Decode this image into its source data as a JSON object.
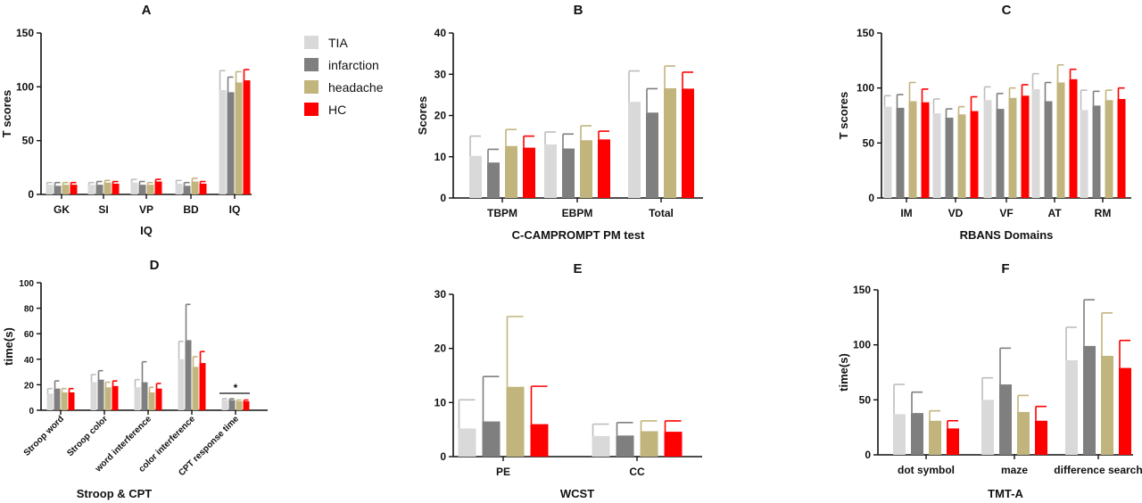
{
  "legend": [
    {
      "name": "TIA",
      "color": "#d9d9d9"
    },
    {
      "name": "infarction",
      "color": "#7f7f7f"
    },
    {
      "name": "headache",
      "color": "#c1b47c"
    },
    {
      "name": "HC",
      "color": "#ff0000"
    }
  ],
  "chart_data": [
    {
      "id": "A",
      "type": "bar",
      "title": "A",
      "xlabel": "IQ",
      "ylabel": "T scores",
      "ylim": [
        0,
        150
      ],
      "yticks": [
        0,
        50,
        100,
        150
      ],
      "categories": [
        "GK",
        "SI",
        "VP",
        "BD",
        "IQ"
      ],
      "series": [
        {
          "name": "TIA",
          "values": [
            9,
            9,
            11,
            10,
            97
          ],
          "errors": [
            2,
            2,
            3,
            3,
            18
          ]
        },
        {
          "name": "infarction",
          "values": [
            8,
            9,
            9,
            8,
            95
          ],
          "errors": [
            3,
            3,
            3,
            3,
            14
          ]
        },
        {
          "name": "headache",
          "values": [
            9,
            11,
            9,
            12,
            104
          ],
          "errors": [
            2,
            2,
            2,
            3,
            10
          ]
        },
        {
          "name": "HC",
          "values": [
            9,
            10,
            12,
            10,
            106
          ],
          "errors": [
            2,
            2,
            2,
            2,
            10
          ]
        }
      ]
    },
    {
      "id": "B",
      "type": "bar",
      "title": "B",
      "xlabel": "C-CAMPROMPT PM test",
      "ylabel": "Scores",
      "ylim": [
        0,
        40
      ],
      "yticks": [
        0,
        10,
        20,
        30,
        40
      ],
      "categories": [
        "TBPM",
        "EBPM",
        "Total"
      ],
      "series": [
        {
          "name": "TIA",
          "values": [
            10.2,
            13,
            23.3
          ],
          "errors": [
            4.8,
            3,
            7.5
          ]
        },
        {
          "name": "infarction",
          "values": [
            8.6,
            12,
            20.7
          ],
          "errors": [
            3.2,
            3.5,
            5.8
          ]
        },
        {
          "name": "headache",
          "values": [
            12.6,
            14,
            26.6
          ],
          "errors": [
            4,
            3.5,
            5.4
          ]
        },
        {
          "name": "HC",
          "values": [
            12.2,
            14.2,
            26.5
          ],
          "errors": [
            2.8,
            2,
            4
          ]
        }
      ]
    },
    {
      "id": "C",
      "type": "bar",
      "title": "C",
      "xlabel": "RBANS Domains",
      "ylabel": "T scores",
      "ylim": [
        0,
        150
      ],
      "yticks": [
        0,
        50,
        100,
        150
      ],
      "categories": [
        "IM",
        "VD",
        "VF",
        "AT",
        "RM"
      ],
      "series": [
        {
          "name": "TIA",
          "values": [
            83,
            77,
            89,
            99,
            80
          ],
          "errors": [
            10,
            13,
            12,
            14,
            18
          ]
        },
        {
          "name": "infarction",
          "values": [
            82,
            73,
            81,
            88,
            84
          ],
          "errors": [
            12,
            8,
            14,
            17,
            13
          ]
        },
        {
          "name": "headache",
          "values": [
            88,
            76,
            91,
            105,
            89
          ],
          "errors": [
            17,
            7,
            9,
            16,
            9
          ]
        },
        {
          "name": "HC",
          "values": [
            87,
            79,
            93,
            108,
            90
          ],
          "errors": [
            12,
            13,
            10,
            9,
            10
          ]
        }
      ]
    },
    {
      "id": "D",
      "type": "bar",
      "title": "D",
      "xlabel": "Stroop & CPT",
      "ylabel": "time(s)",
      "ylim": [
        0,
        100
      ],
      "yticks": [
        0,
        20,
        40,
        60,
        80,
        100
      ],
      "categories": [
        "Stroop word",
        "Stroop color",
        "word interference",
        "color interference",
        "CPT response time"
      ],
      "annotation": "*",
      "series": [
        {
          "name": "TIA",
          "values": [
            13,
            22,
            18,
            40,
            8
          ],
          "errors": [
            4,
            6,
            6,
            14,
            1
          ]
        },
        {
          "name": "infarction",
          "values": [
            17,
            24,
            22,
            55,
            8
          ],
          "errors": [
            6,
            7,
            16,
            28,
            1
          ]
        },
        {
          "name": "headache",
          "values": [
            14,
            18,
            14,
            34,
            7
          ],
          "errors": [
            3,
            4,
            4,
            8,
            1
          ]
        },
        {
          "name": "HC",
          "values": [
            14,
            19,
            17,
            37,
            7
          ],
          "errors": [
            3,
            4,
            4,
            9,
            1
          ]
        }
      ]
    },
    {
      "id": "E",
      "type": "bar",
      "title": "E",
      "xlabel": "WCST",
      "ylabel": "",
      "ylim": [
        0,
        30
      ],
      "yticks": [
        0,
        10,
        20,
        30
      ],
      "categories": [
        "PE",
        "CC"
      ],
      "series": [
        {
          "name": "TIA",
          "values": [
            5.2,
            3.8
          ],
          "errors": [
            5.3,
            2.2
          ]
        },
        {
          "name": "infarction",
          "values": [
            6.5,
            3.9
          ],
          "errors": [
            8.3,
            2.4
          ]
        },
        {
          "name": "headache",
          "values": [
            12.9,
            4.7
          ],
          "errors": [
            13,
            1.9
          ]
        },
        {
          "name": "HC",
          "values": [
            6,
            4.6
          ],
          "errors": [
            7,
            2
          ]
        }
      ]
    },
    {
      "id": "F",
      "type": "bar",
      "title": "F",
      "xlabel": "TMT-A",
      "ylabel": "time(s)",
      "ylim": [
        0,
        150
      ],
      "yticks": [
        0,
        50,
        100,
        150
      ],
      "categories": [
        "dot symbol",
        "maze",
        "difference search"
      ],
      "series": [
        {
          "name": "TIA",
          "values": [
            37,
            50,
            86
          ],
          "errors": [
            27,
            20,
            30
          ]
        },
        {
          "name": "infarction",
          "values": [
            38,
            64,
            99
          ],
          "errors": [
            19,
            33,
            42
          ]
        },
        {
          "name": "headache",
          "values": [
            31,
            39,
            90
          ],
          "errors": [
            9,
            15,
            39
          ]
        },
        {
          "name": "HC",
          "values": [
            24,
            31,
            79
          ],
          "errors": [
            7,
            13,
            25
          ]
        }
      ]
    }
  ]
}
